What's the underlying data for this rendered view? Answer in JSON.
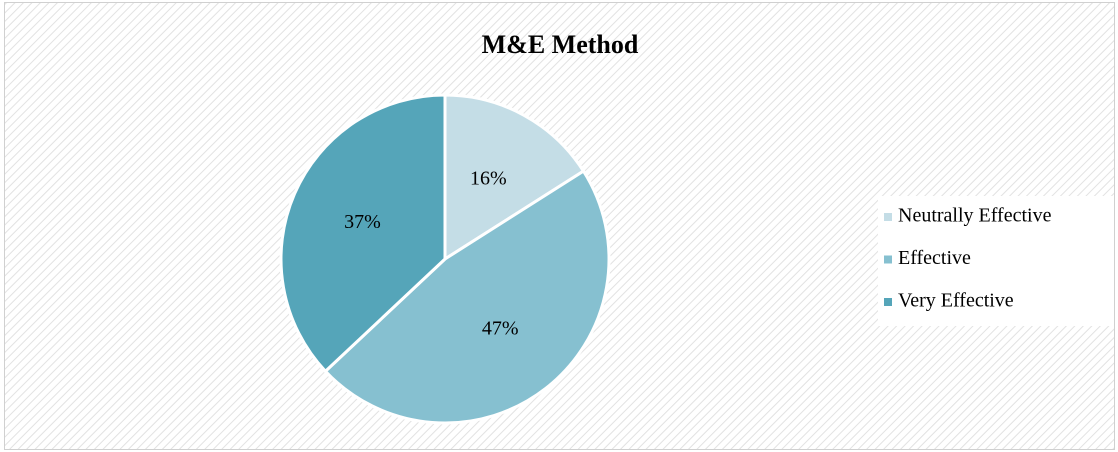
{
  "chart_data": {
    "type": "pie",
    "title": "M&E Method",
    "categories": [
      "Neutrally Effective",
      "Effective",
      "Very Effective"
    ],
    "values": [
      16,
      47,
      37
    ],
    "value_labels": [
      "16%",
      "47%",
      "37%"
    ],
    "colors": [
      "#c4dde6",
      "#86c0d0",
      "#55a5b9"
    ],
    "legend": "right"
  }
}
